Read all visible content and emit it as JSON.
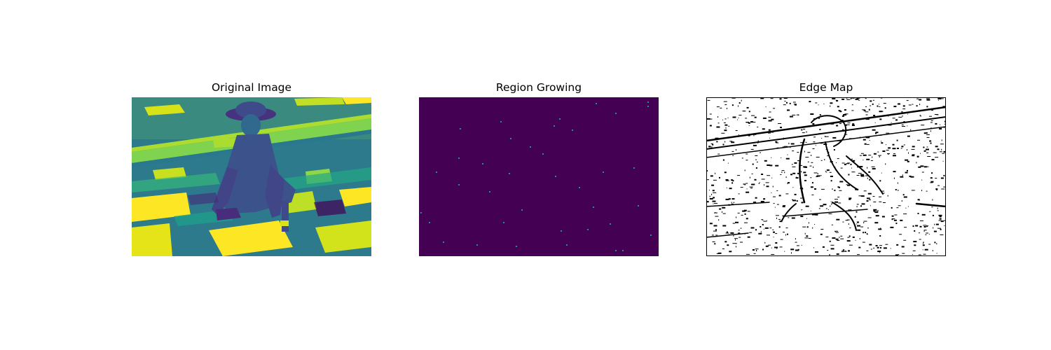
{
  "figure": {
    "panels": [
      {
        "title": "Original Image",
        "colors": {
          "dark": "#440154",
          "mid": "#31688e",
          "teal": "#21918c",
          "green": "#5ec962",
          "yellow": "#fde725"
        }
      },
      {
        "title": "Region Growing",
        "colors": {
          "background": "#440154",
          "seed": "#21918c"
        }
      },
      {
        "title": "Edge Map",
        "colors": {
          "background": "#ffffff",
          "edge": "#000000",
          "frame": "#000000"
        }
      }
    ]
  }
}
